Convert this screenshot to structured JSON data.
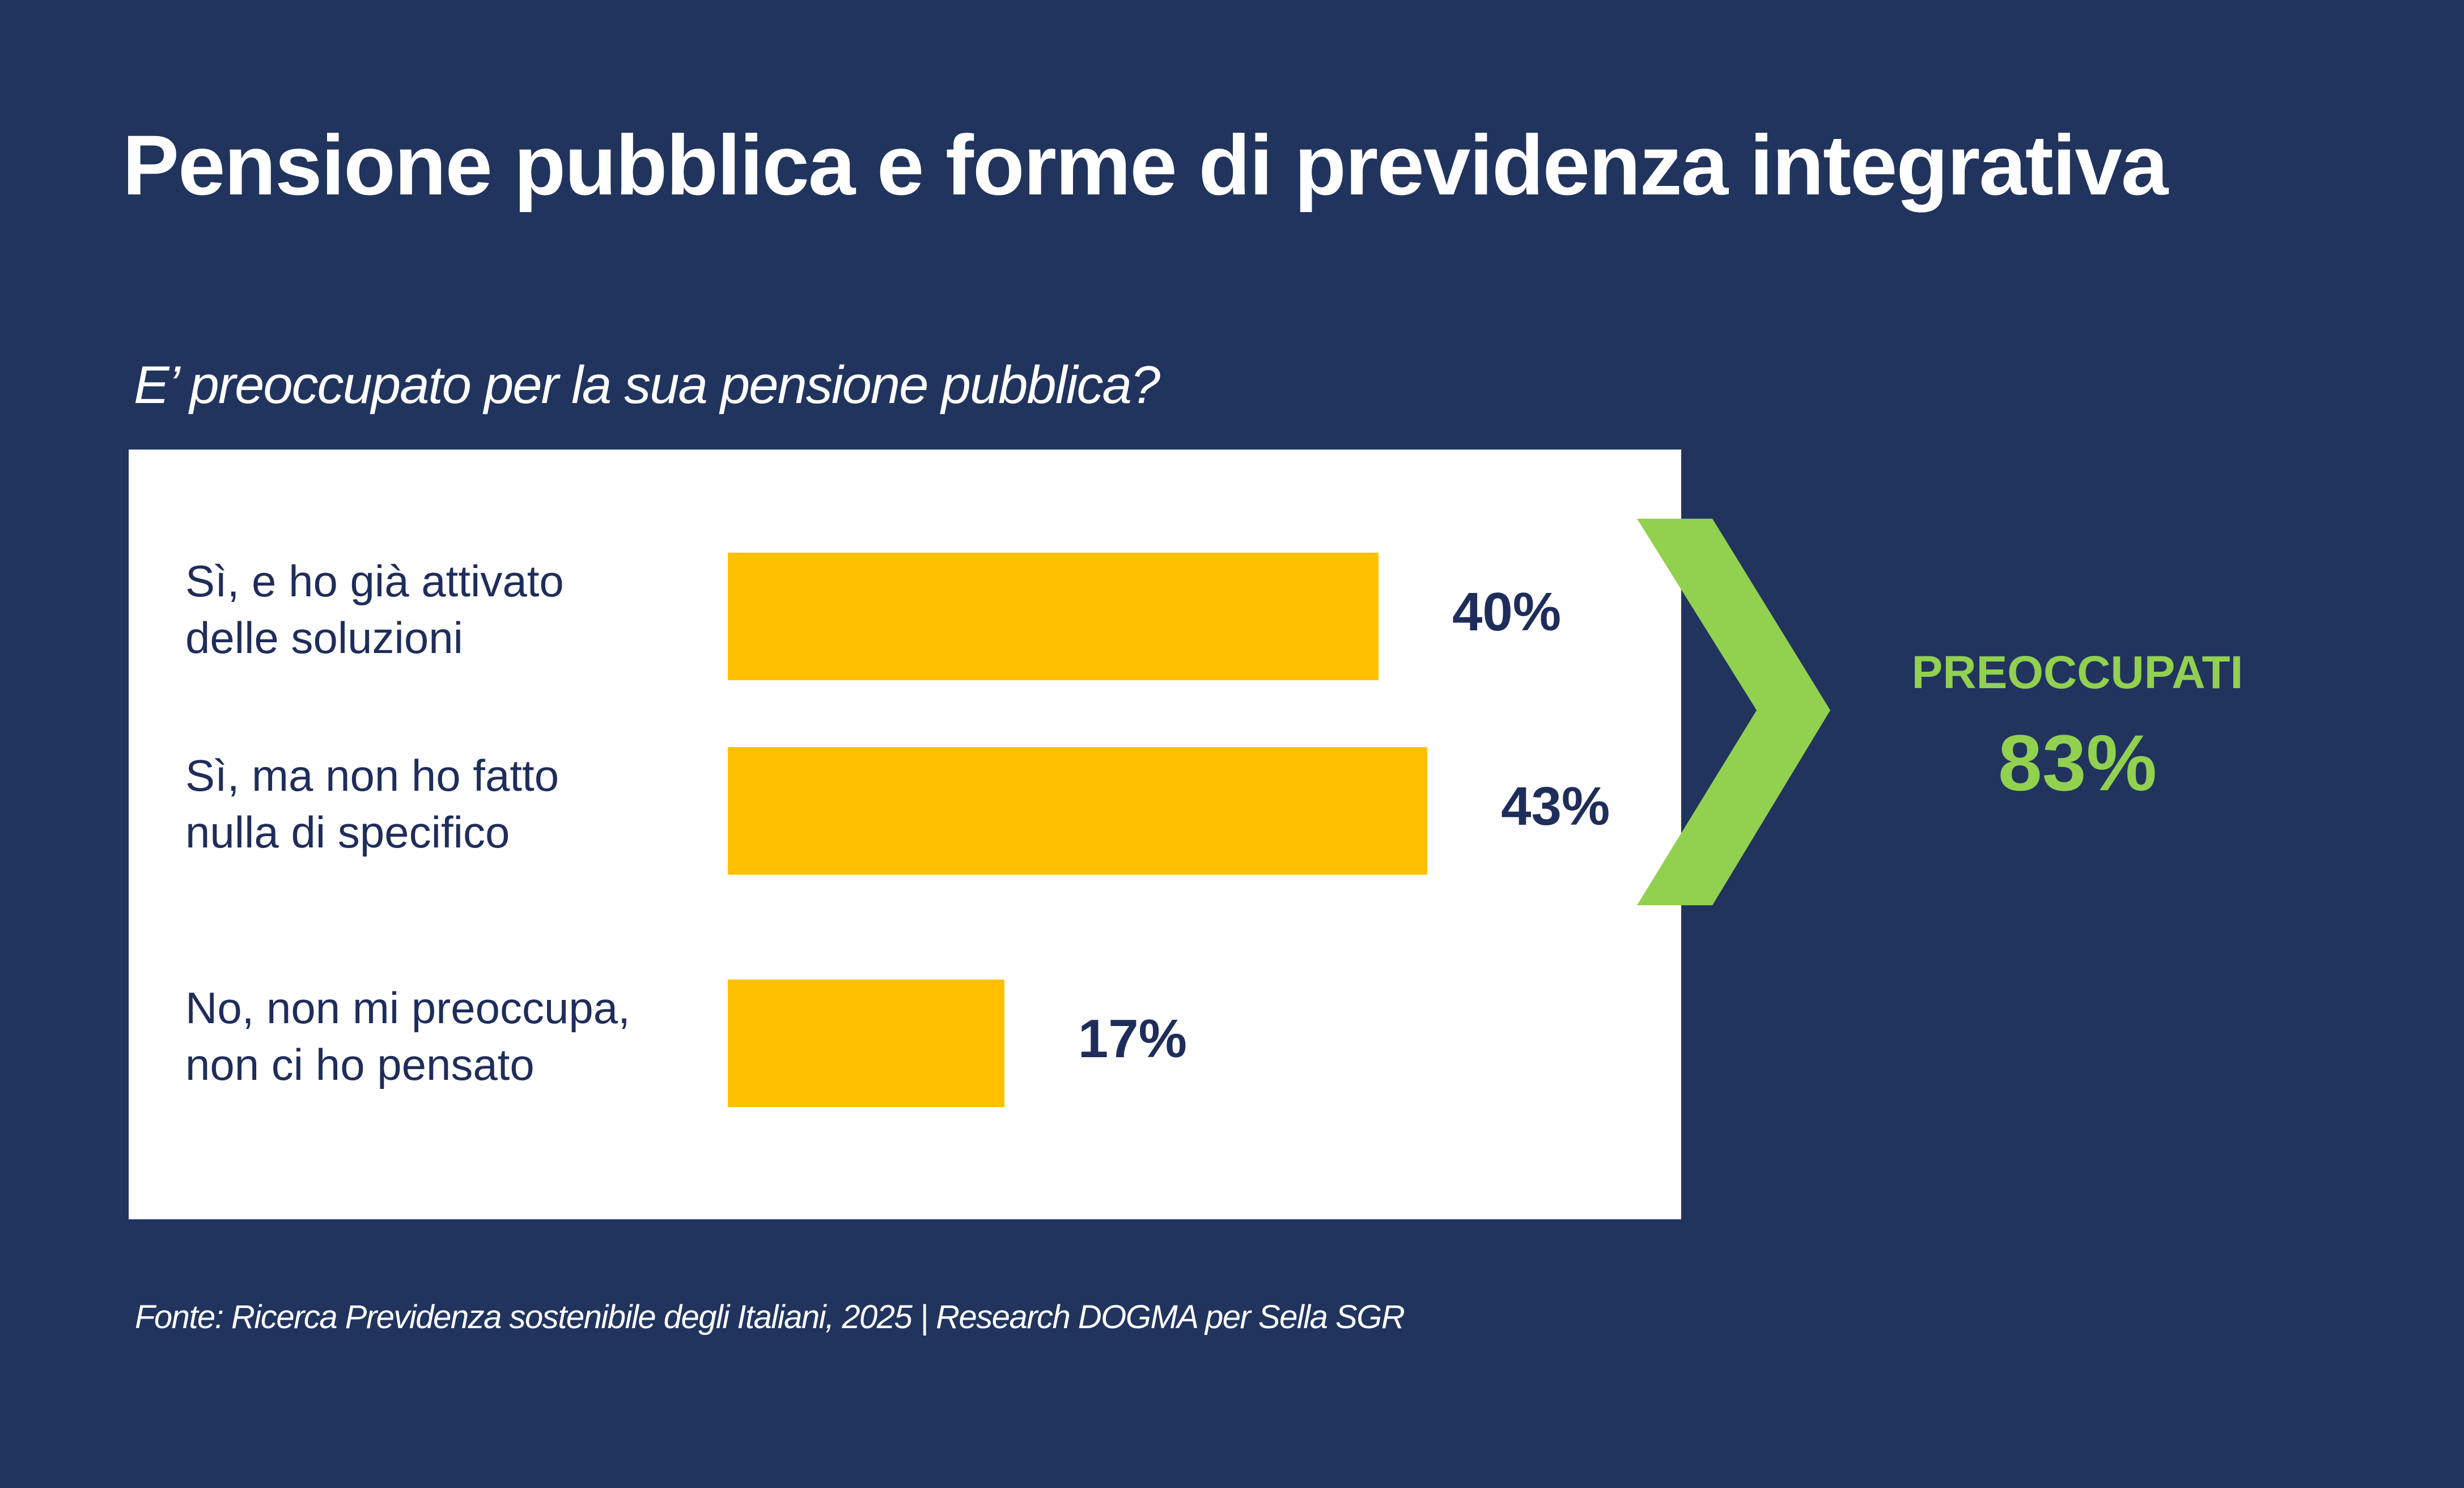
{
  "title": "Pensione pubblica e forme di previdenza integrativa",
  "chart_data": {
    "type": "bar",
    "orientation": "horizontal",
    "title": "E’ preoccupato per la sua pensione pubblica?",
    "categories": [
      "Sì, e ho già attivato delle soluzioni",
      "Sì, ma non ho fatto nulla di specifico",
      "No, non mi preoccupa, non ci ho pensato"
    ],
    "category_lines": [
      [
        "Sì, e ho già attivato",
        "delle soluzioni"
      ],
      [
        "Sì, ma non ho fatto",
        "nulla di specifico"
      ],
      [
        "No, non mi preoccupa,",
        "non ci ho pensato"
      ]
    ],
    "values": [
      40,
      43,
      17
    ],
    "value_labels": [
      "40%",
      "43%",
      "17%"
    ],
    "unit": "%",
    "xlim": [
      0,
      100
    ],
    "grid": false,
    "bar_color": "#FFC000",
    "annotation": {
      "label": "PREOCCUPATI",
      "value": "83%",
      "color": "#92D050",
      "groups": [
        0,
        1
      ]
    }
  },
  "footer": "Fonte: Ricerca Previdenza sostenibile degli Italiani, 2025 | Research DOGMA per Sella SGR"
}
